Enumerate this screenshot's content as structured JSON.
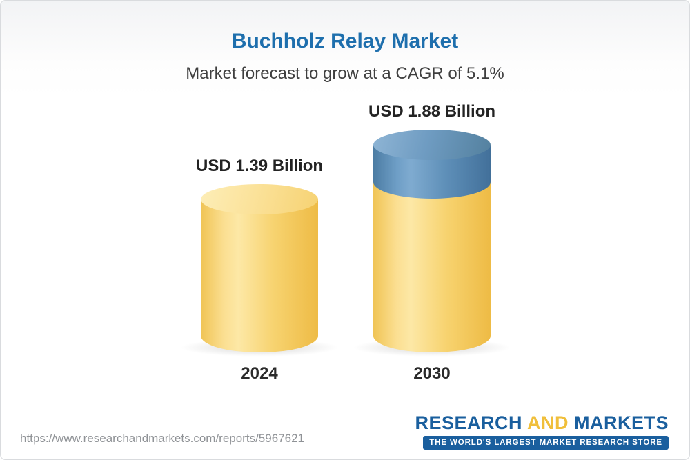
{
  "header": {
    "title": "Buchholz Relay Market",
    "subtitle": "Market forecast to grow at a CAGR of 5.1%"
  },
  "chart_data": {
    "type": "bar",
    "title": "Buchholz Relay Market",
    "subtitle": "Market forecast to grow at a CAGR of 5.1%",
    "categories": [
      "2024",
      "2030"
    ],
    "values": [
      1.39,
      1.88
    ],
    "value_labels": [
      "USD 1.39 Billion",
      "USD 1.88 Billion"
    ],
    "unit": "USD Billion",
    "cagr_percent": 5.1,
    "bar_style": "3d-cylinder",
    "bar_colors": [
      "#f7d370",
      "#5e8fb8"
    ],
    "growth_segment_color": "#5e8fb8",
    "legend": "none",
    "axes_visible": false,
    "grid": false
  },
  "footer": {
    "url": "https://www.researchandmarkets.com/reports/5967621",
    "logo": {
      "research": "RESEARCH",
      "and": "AND",
      "markets": "MARKETS",
      "tagline": "THE WORLD'S LARGEST MARKET RESEARCH STORE"
    }
  },
  "colors": {
    "title_blue": "#1e6fad",
    "bar_yellow": "#f7d370",
    "bar_blue": "#5e8fb8",
    "logo_blue": "#1a5f9e",
    "logo_gold": "#f0bf3b"
  }
}
